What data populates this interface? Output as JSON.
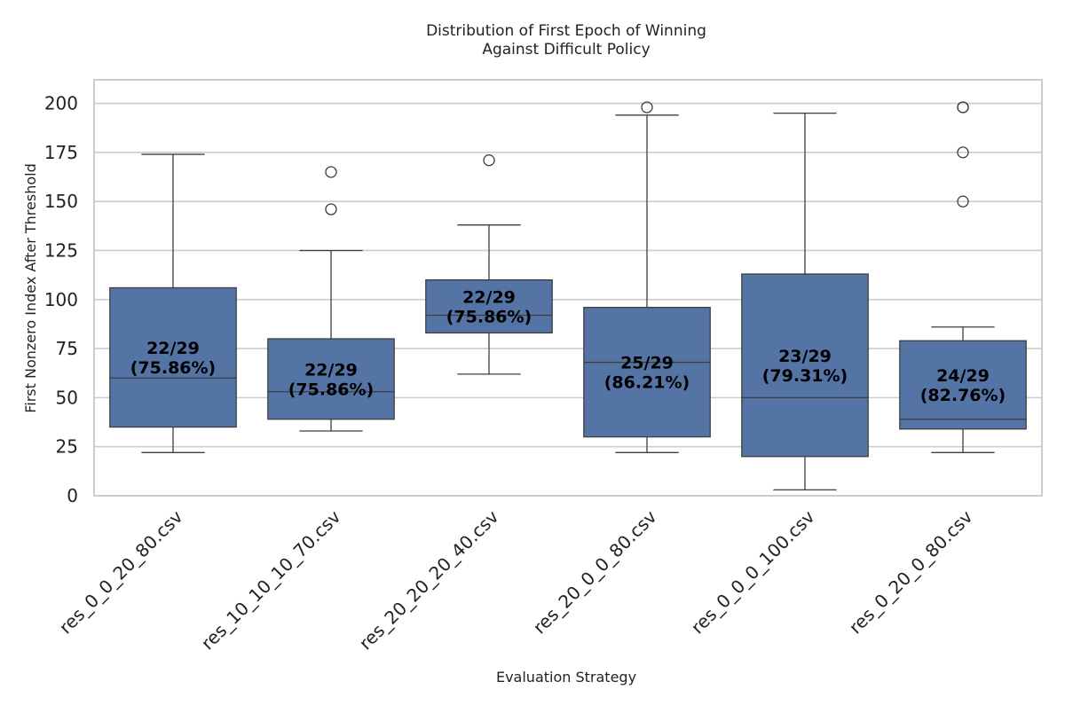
{
  "chart_data": {
    "type": "box",
    "title_lines": [
      "Distribution of First Epoch of Winning",
      "Against Difficult Policy"
    ],
    "xlabel": "Evaluation Strategy",
    "ylabel": "First Nonzero Index After Threshold",
    "ylim": [
      0,
      212
    ],
    "yticks": [
      0,
      25,
      50,
      75,
      100,
      125,
      150,
      175,
      200
    ],
    "grid": true,
    "box_color": "#5574a6",
    "categories": [
      "res_0_0_20_80.csv",
      "res_10_10_10_70.csv",
      "res_20_20_20_40.csv",
      "res_20_0_0_80.csv",
      "res_0_0_0_100.csv",
      "res_0_20_0_80.csv"
    ],
    "boxes": [
      {
        "whisker_low": 22,
        "q1": 35,
        "median": 60,
        "q3": 106,
        "whisker_high": 174,
        "outliers": [],
        "label": "22/29\n(75.86%)"
      },
      {
        "whisker_low": 33,
        "q1": 39,
        "median": 53,
        "q3": 80,
        "whisker_high": 125,
        "outliers": [
          146,
          165
        ],
        "label": "22/29\n(75.86%)"
      },
      {
        "whisker_low": 62,
        "q1": 83,
        "median": 92,
        "q3": 110,
        "whisker_high": 138,
        "outliers": [
          171
        ],
        "label": "22/29\n(75.86%)"
      },
      {
        "whisker_low": 22,
        "q1": 30,
        "median": 68,
        "q3": 96,
        "whisker_high": 194,
        "outliers": [
          198
        ],
        "label": "25/29\n(86.21%)"
      },
      {
        "whisker_low": 3,
        "q1": 20,
        "median": 50,
        "q3": 113,
        "whisker_high": 195,
        "outliers": [],
        "label": "23/29\n(79.31%)"
      },
      {
        "whisker_low": 22,
        "q1": 34,
        "median": 39,
        "q3": 79,
        "whisker_high": 86,
        "outliers": [
          150,
          175,
          198,
          198
        ],
        "label": "24/29\n(82.76%)"
      }
    ]
  }
}
